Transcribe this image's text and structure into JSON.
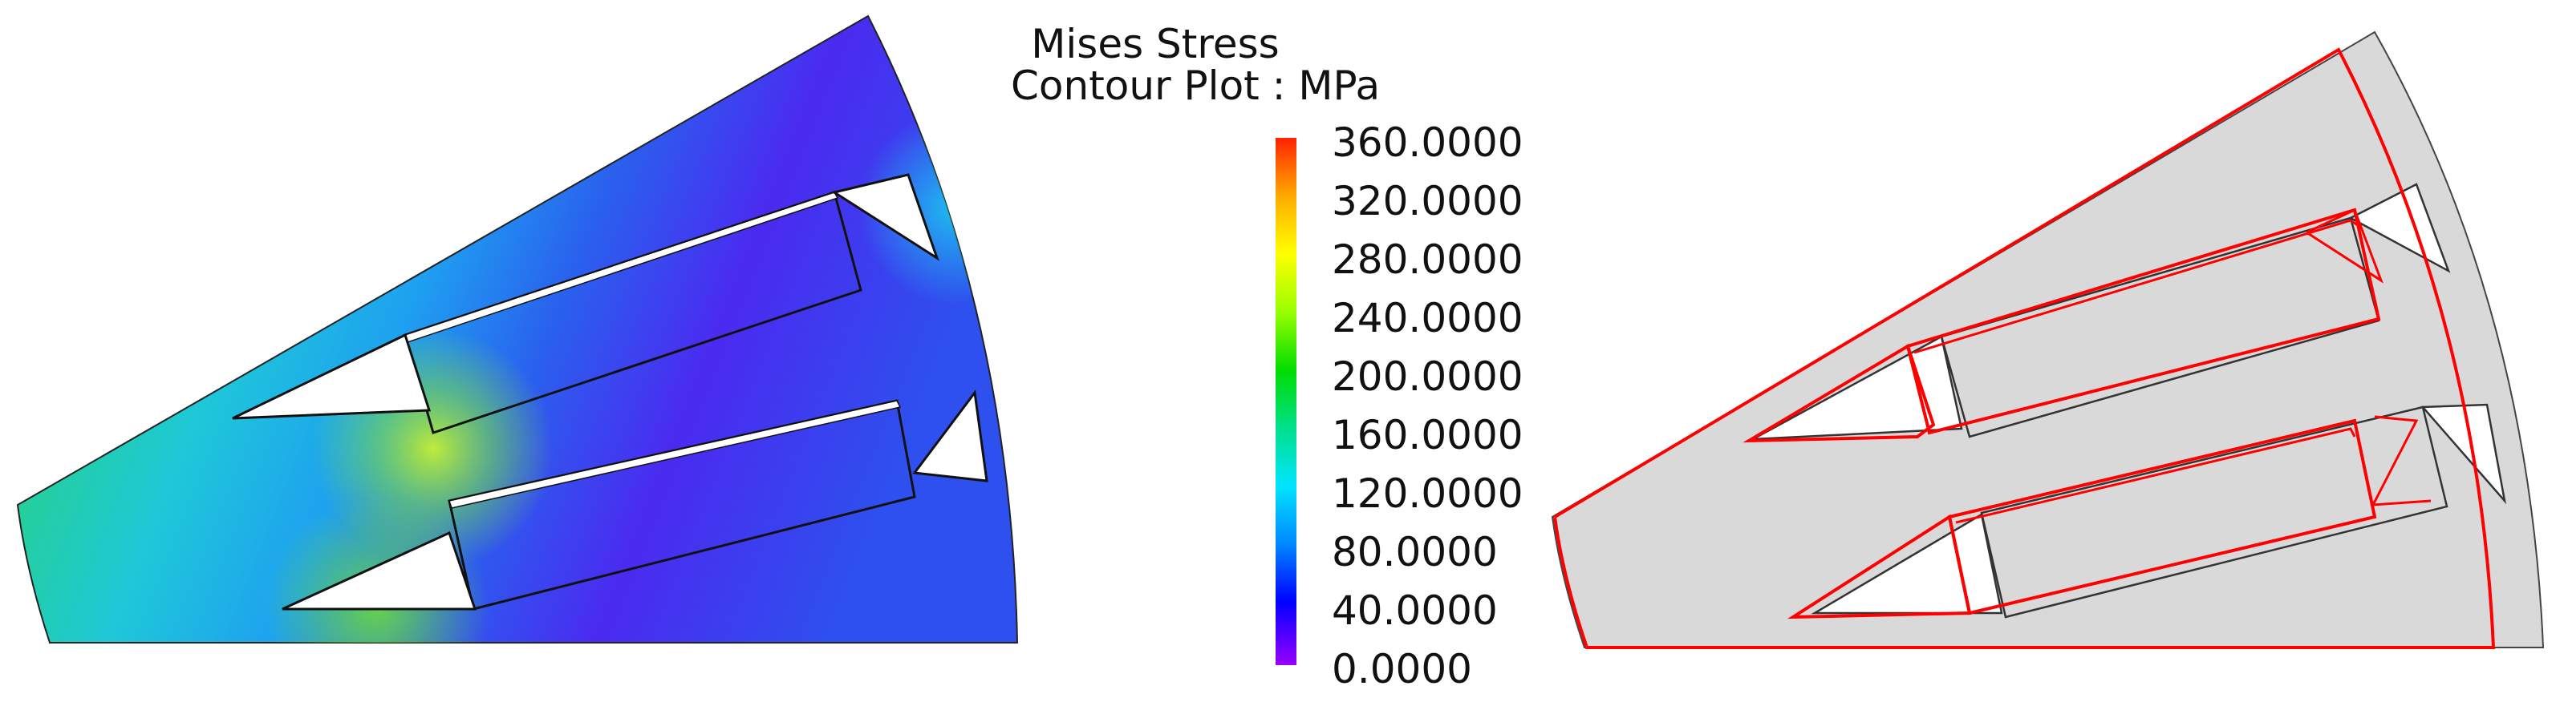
{
  "legend": {
    "title_line1": "Mises Stress",
    "title_line2": "Contour Plot : MPa",
    "ticks": [
      "360.0000",
      "320.0000",
      "280.0000",
      "240.0000",
      "200.0000",
      "160.0000",
      "120.0000",
      "80.0000",
      "40.0000",
      "0.0000"
    ],
    "gradient_colors": [
      "#ff2200",
      "#ffaa00",
      "#ffff00",
      "#99ff00",
      "#00dd00",
      "#00e08a",
      "#00e5ff",
      "#0088ff",
      "#0000ff",
      "#9900ff"
    ]
  },
  "colors": {
    "deformed_outline": "#ff0000",
    "undeformed_fill": "#d9d9d9",
    "undeformed_outline": "#444444"
  }
}
